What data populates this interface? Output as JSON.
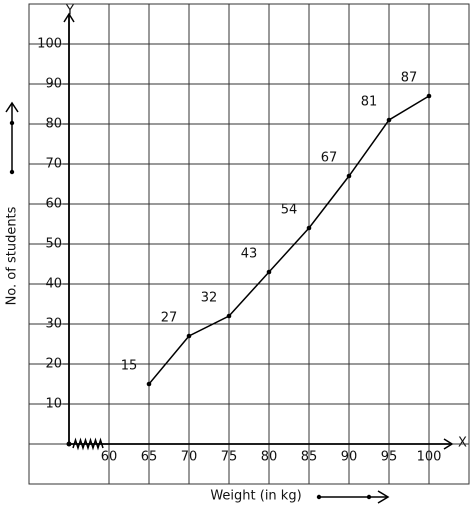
{
  "chart_data": {
    "type": "line",
    "x_label": "Weight (in kg)",
    "y_label": "No. of students",
    "x_axis_name": "X",
    "y_axis_name": "Y",
    "x": [
      65,
      70,
      75,
      80,
      85,
      90,
      95,
      100
    ],
    "values": [
      15,
      27,
      32,
      43,
      54,
      67,
      81,
      87
    ],
    "color": "#000000",
    "xlim": [
      55,
      105
    ],
    "xticks": [
      60,
      65,
      70,
      75,
      80,
      85,
      90,
      95,
      100
    ],
    "ylim": [
      0,
      110
    ],
    "yticks": [
      10,
      20,
      30,
      40,
      50,
      60,
      70,
      80,
      90,
      100
    ],
    "x_axis_break": true,
    "grid": true
  }
}
